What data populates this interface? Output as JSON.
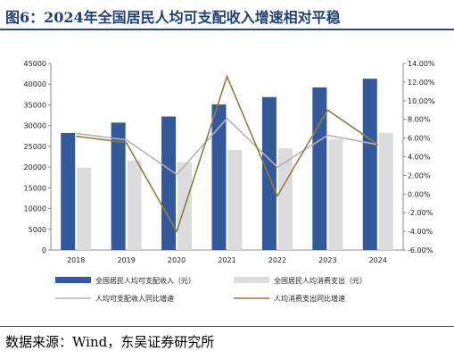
{
  "title": "图6：2024年全国居民人均可支配收入增速相对平稳",
  "source": "数据来源：Wind，东吴证券研究所",
  "chart_data": {
    "type": "bar",
    "categories": [
      "2018",
      "2019",
      "2020",
      "2021",
      "2022",
      "2023",
      "2024"
    ],
    "series": [
      {
        "name": "全国居民人均可支配收入（元）",
        "kind": "bar",
        "axis": "left",
        "color": "#34599a",
        "values": [
          28228,
          30733,
          32189,
          35128,
          36883,
          39218,
          41314
        ]
      },
      {
        "name": "全国居民人均消费支出（元）",
        "kind": "bar",
        "axis": "left",
        "color": "#dcdcdc",
        "values": [
          19853,
          21559,
          21210,
          24100,
          24538,
          26796,
          28227
        ]
      },
      {
        "name": "人均可支配收入同比增速",
        "kind": "line",
        "axis": "right",
        "color": "#b3b3b3",
        "values": [
          6.5,
          5.8,
          2.1,
          8.1,
          2.9,
          6.3,
          5.3
        ]
      },
      {
        "name": "人均消费支出同比增速",
        "kind": "line",
        "axis": "right",
        "color": "#8a7f45",
        "values": [
          6.2,
          5.5,
          -4.0,
          12.6,
          -0.2,
          9.0,
          5.3
        ]
      }
    ],
    "y_left": {
      "min": 0,
      "max": 45000,
      "step": 5000,
      "ticks": [
        "0",
        "5000",
        "10000",
        "15000",
        "20000",
        "25000",
        "30000",
        "35000",
        "40000",
        "45000"
      ]
    },
    "y_right": {
      "min": -6,
      "max": 14,
      "step": 2,
      "ticks": [
        "-6.00%",
        "-4.00%",
        "-2.00%",
        "0.00%",
        "2.00%",
        "4.00%",
        "6.00%",
        "8.00%",
        "10.00%",
        "12.00%",
        "14.00%"
      ]
    },
    "legend_position": "bottom",
    "grid": false
  }
}
